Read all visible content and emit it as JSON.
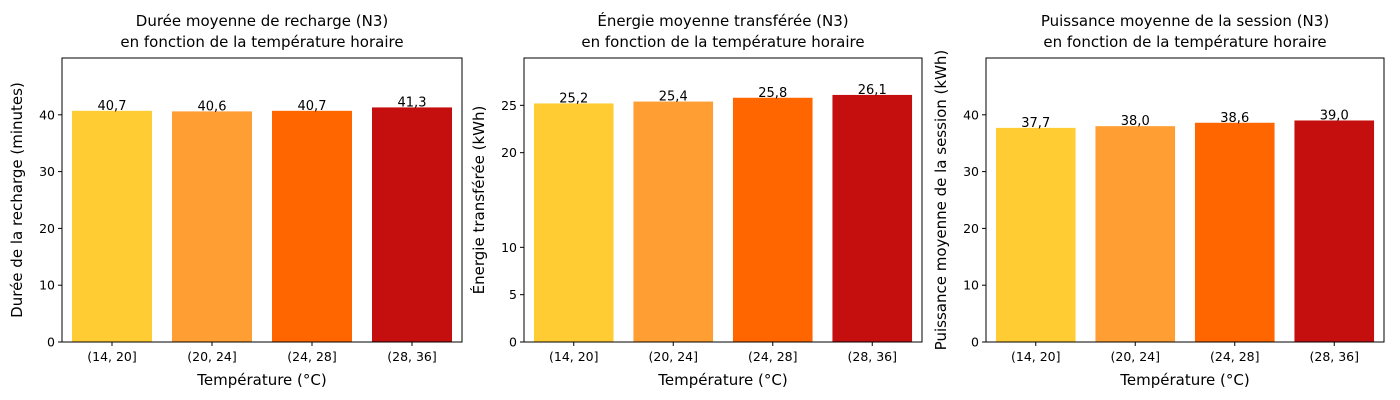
{
  "chart_data": [
    {
      "type": "bar",
      "title": [
        "Durée moyenne de recharge (N3)",
        "en fonction de la température horaire"
      ],
      "xlabel": "Température (°C)",
      "ylabel": "Durée de la recharge (minutes)",
      "categories": [
        "(14, 20]",
        "(20, 24]",
        "(24, 28]",
        "(28, 36]"
      ],
      "values": [
        40.7,
        40.6,
        40.7,
        41.3
      ],
      "value_labels": [
        "40,7",
        "40,6",
        "40,7",
        "41,3"
      ],
      "ylim": [
        0,
        50
      ],
      "yticks": [
        0,
        10,
        20,
        30,
        40
      ],
      "colors": [
        "#FFCC33",
        "#FF9F33",
        "#FF6600",
        "#C50E0E"
      ],
      "grid": false,
      "legend": "none"
    },
    {
      "type": "bar",
      "title": [
        "Énergie moyenne transférée (N3)",
        "en fonction de la température horaire"
      ],
      "xlabel": "Température (°C)",
      "ylabel": "Énergie transférée (kWh)",
      "categories": [
        "(14, 20]",
        "(20, 24]",
        "(24, 28]",
        "(28, 36]"
      ],
      "values": [
        25.2,
        25.4,
        25.8,
        26.1
      ],
      "value_labels": [
        "25,2",
        "25,4",
        "25,8",
        "26,1"
      ],
      "ylim": [
        0,
        30
      ],
      "yticks": [
        0,
        5,
        10,
        20,
        25
      ],
      "colors": [
        "#FFCC33",
        "#FF9F33",
        "#FF6600",
        "#C50E0E"
      ],
      "grid": false,
      "legend": "none"
    },
    {
      "type": "bar",
      "title": [
        "Puissance moyenne de la session (N3)",
        "en fonction de la température horaire"
      ],
      "xlabel": "Température (°C)",
      "ylabel": "Puissance moyenne de la session (kWh)",
      "categories": [
        "(14, 20]",
        "(20, 24]",
        "(24, 28]",
        "(28, 36]"
      ],
      "values": [
        37.7,
        38.0,
        38.6,
        39.0
      ],
      "value_labels": [
        "37,7",
        "38,0",
        "38,6",
        "39,0"
      ],
      "ylim": [
        0,
        50
      ],
      "yticks": [
        0,
        10,
        20,
        30,
        40
      ],
      "colors": [
        "#FFCC33",
        "#FF9F33",
        "#FF6600",
        "#C50E0E"
      ],
      "grid": false,
      "legend": "none"
    }
  ]
}
